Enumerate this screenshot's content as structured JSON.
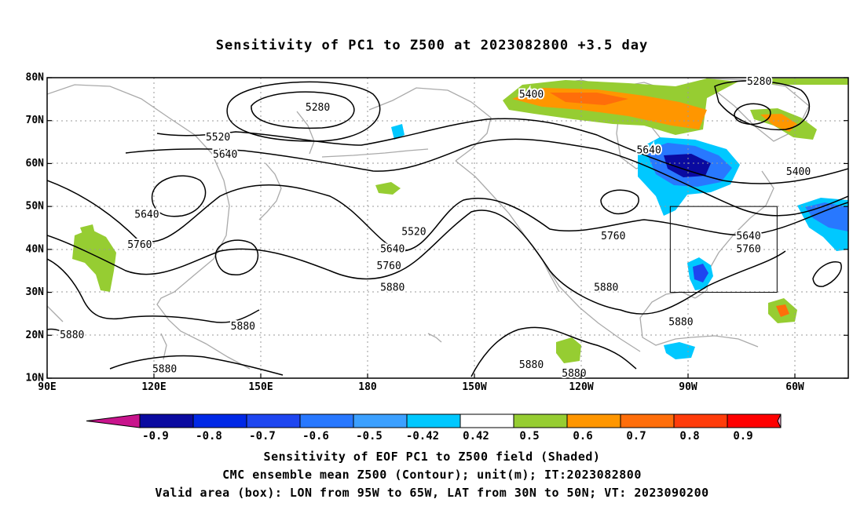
{
  "title": "Sensitivity of PC1 to Z500 at 2023082800 +3.5 day",
  "map": {
    "lat_labels": [
      {
        "lat": 80,
        "label": "80N"
      },
      {
        "lat": 70,
        "label": "70N"
      },
      {
        "lat": 60,
        "label": "60N"
      },
      {
        "lat": 50,
        "label": "50N"
      },
      {
        "lat": 40,
        "label": "40N"
      },
      {
        "lat": 30,
        "label": "30N"
      },
      {
        "lat": 20,
        "label": "20N"
      },
      {
        "lat": 10,
        "label": "10N"
      }
    ],
    "lon_labels": [
      {
        "lon": 90,
        "label": "90E"
      },
      {
        "lon": 120,
        "label": "120E"
      },
      {
        "lon": 150,
        "label": "150E"
      },
      {
        "lon": 180,
        "label": "180"
      },
      {
        "lon": 210,
        "label": "150W"
      },
      {
        "lon": 240,
        "label": "120W"
      },
      {
        "lon": 270,
        "label": "90W"
      },
      {
        "lon": 300,
        "label": "60W"
      }
    ],
    "lon_range": [
      90,
      315
    ],
    "lat_range": [
      10,
      80
    ],
    "valid_box": {
      "lon_w": 265,
      "lon_e": 295,
      "lat_s": 30,
      "lat_n": 50
    },
    "contour_labels": [
      {
        "text": "5280",
        "lon": 166,
        "lat": 73
      },
      {
        "text": "5520",
        "lon": 138,
        "lat": 66
      },
      {
        "text": "5640",
        "lon": 140,
        "lat": 62
      },
      {
        "text": "5400",
        "lon": 226,
        "lat": 76
      },
      {
        "text": "5280",
        "lon": 290,
        "lat": 79
      },
      {
        "text": "5640",
        "lon": 259,
        "lat": 63
      },
      {
        "text": "5400",
        "lon": 301,
        "lat": 58
      },
      {
        "text": "5640",
        "lon": 118,
        "lat": 48
      },
      {
        "text": "5760",
        "lon": 116,
        "lat": 41
      },
      {
        "text": "5520",
        "lon": 193,
        "lat": 44
      },
      {
        "text": "5640",
        "lon": 187,
        "lat": 40
      },
      {
        "text": "5760",
        "lon": 186,
        "lat": 36
      },
      {
        "text": "5880",
        "lon": 187,
        "lat": 31
      },
      {
        "text": "5760",
        "lon": 249,
        "lat": 43
      },
      {
        "text": "5880",
        "lon": 247,
        "lat": 31
      },
      {
        "text": "5640",
        "lon": 287,
        "lat": 43
      },
      {
        "text": "5760",
        "lon": 287,
        "lat": 40
      },
      {
        "text": "5880",
        "lon": 145,
        "lat": 22
      },
      {
        "text": "5880",
        "lon": 97,
        "lat": 20
      },
      {
        "text": "5880",
        "lon": 123,
        "lat": 12
      },
      {
        "text": "5880",
        "lon": 226,
        "lat": 13
      },
      {
        "text": "5880",
        "lon": 238,
        "lat": 11
      },
      {
        "text": "5880",
        "lon": 268,
        "lat": 23
      }
    ]
  },
  "colorbar": {
    "labels": [
      "-0.9",
      "-0.8",
      "-0.7",
      "-0.6",
      "-0.5",
      "-0.42",
      "0.42",
      "0.5",
      "0.6",
      "0.7",
      "0.8",
      "0.9"
    ],
    "colors": [
      "#0a0aa0",
      "#0028e6",
      "#1e46f0",
      "#2878ff",
      "#3ca0ff",
      "#00c8ff",
      "#ffffff",
      "#96cd32",
      "#ff9600",
      "#ff6e0a",
      "#ff3c0a",
      "#ff0000"
    ],
    "low_extend_color": "#c8148c",
    "high_extend_color": "#f5a0c8"
  },
  "caption": {
    "line1": "Sensitivity of EOF PC1 to Z500 field (Shaded)",
    "line2": "CMC ensemble mean Z500 (Contour); unit(m); IT:2023082800",
    "line3": "Valid area (box): LON from 95W to 65W, LAT from 30N to 50N; VT: 2023090200"
  }
}
